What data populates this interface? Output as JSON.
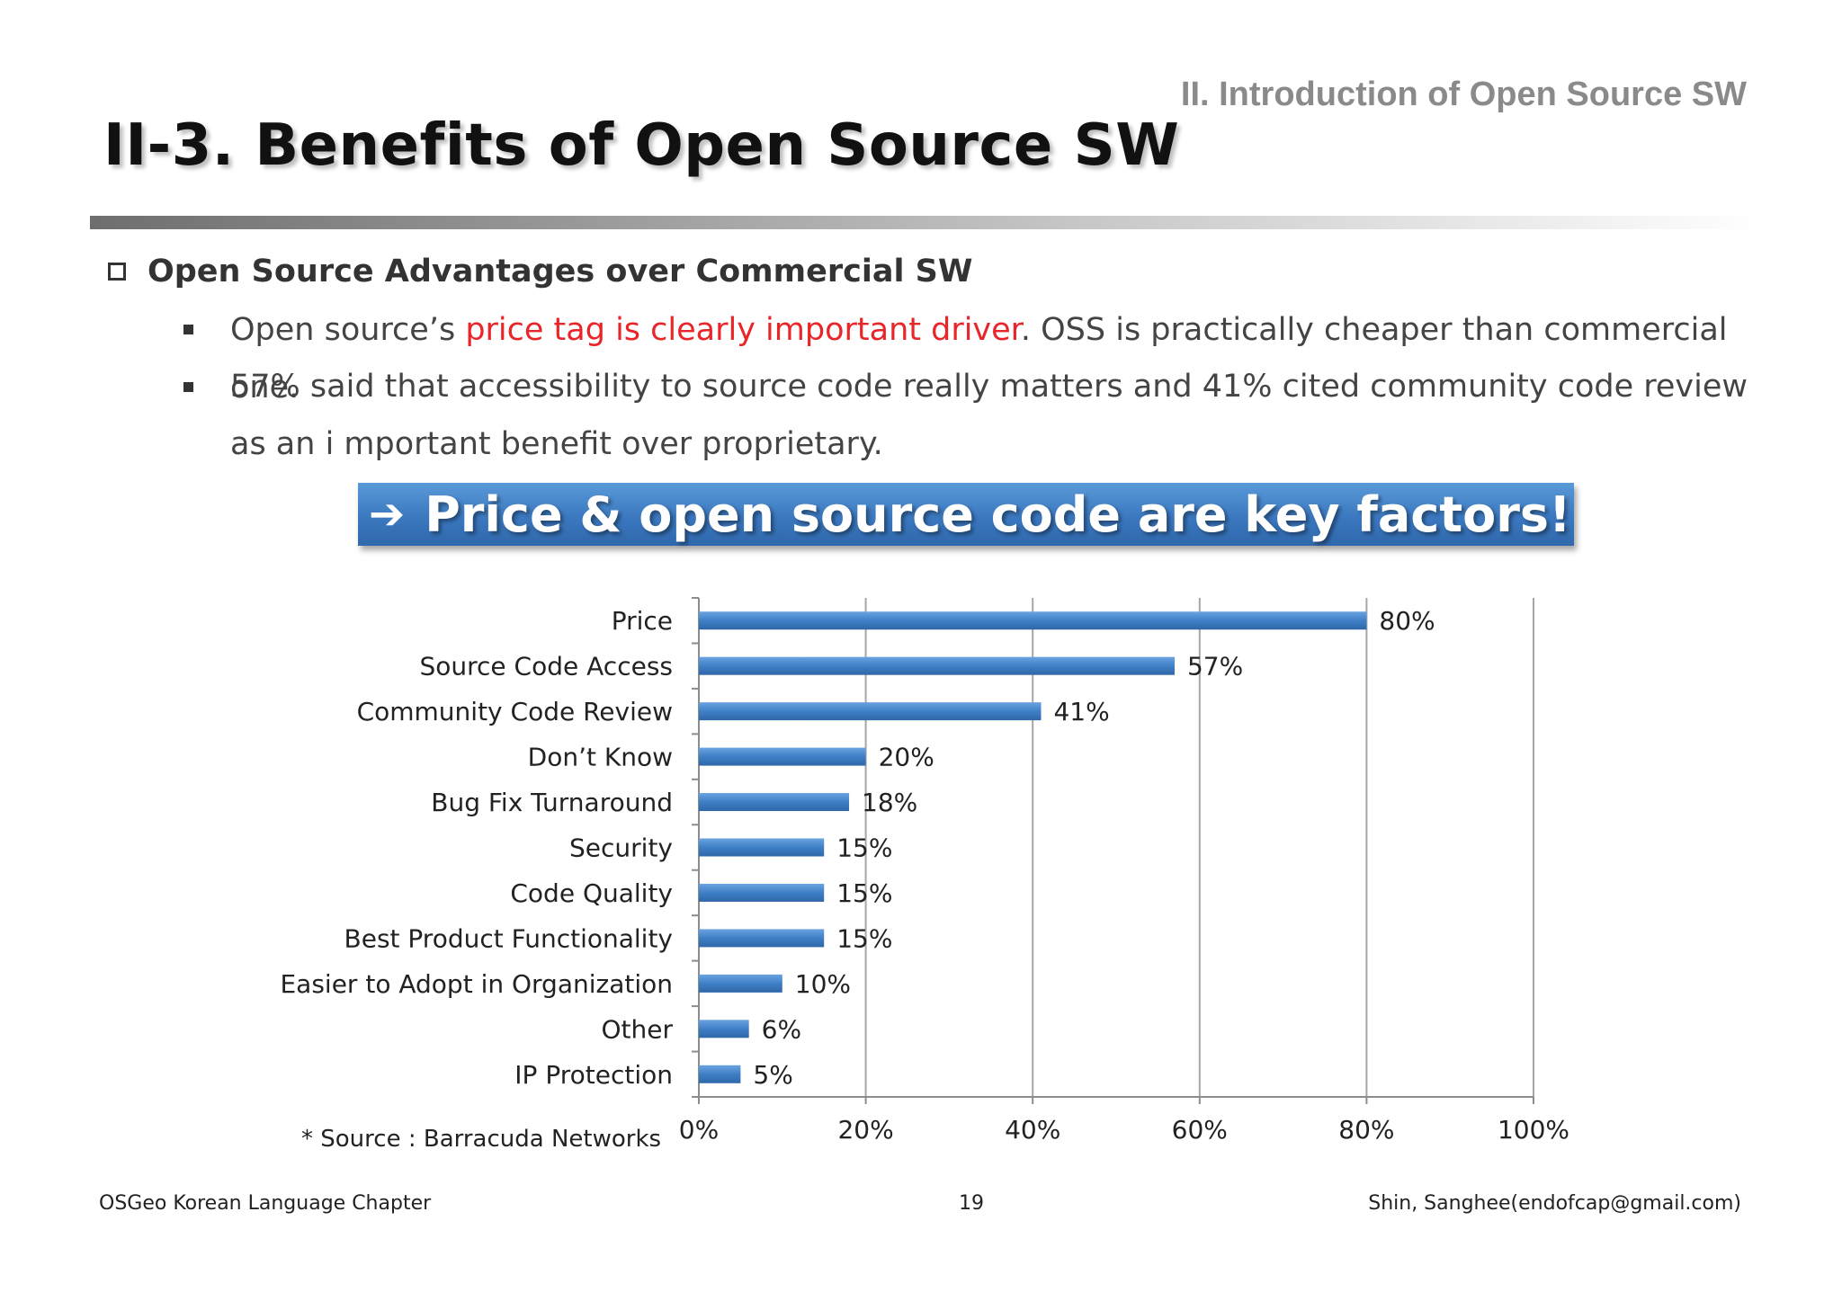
{
  "header": {
    "section_title": "II. Introduction of Open Source SW",
    "page_title": "II-3. Benefits of Open Source SW"
  },
  "content": {
    "subheading": "Open Source Advantages over Commercial SW",
    "bullet1_pre": "Open source’s ",
    "bullet1_highlight": "price tag is clearly important driver",
    "bullet1_post": ". OSS is practically cheaper than commercial one.",
    "bullet2": "57% said that accessibility to source code really matters and 41% cited community code review as an i mportant benefit over proprietary.",
    "banner_arrow": "➔",
    "banner_text": "Price & open source code are key factors!",
    "source_note": "* Source : Barracuda Networks"
  },
  "footer": {
    "left": "OSGeo Korean Language Chapter",
    "page_number": "19",
    "right": "Shin, Sanghee(endofcap@gmail.com)"
  },
  "colors": {
    "bar": "#3f7fc6",
    "bar_dark": "#2f67a8",
    "gridline": "#a6a6a6",
    "highlight_red": "#e8262a"
  },
  "chart_data": {
    "type": "bar",
    "orientation": "horizontal",
    "categories": [
      "Price",
      "Source Code Access",
      "Community Code Review",
      "Don’t Know",
      "Bug Fix Turnaround",
      "Security",
      "Code Quality",
      "Best Product Functionality",
      "Easier to Adopt in Organization",
      "Other",
      "IP Protection"
    ],
    "values": [
      80,
      57,
      41,
      20,
      18,
      15,
      15,
      15,
      10,
      6,
      5
    ],
    "value_labels": [
      "80%",
      "57%",
      "41%",
      "20%",
      "18%",
      "15%",
      "15%",
      "15%",
      "10%",
      "6%",
      "5%"
    ],
    "xlim": [
      0,
      100
    ],
    "xticks": [
      0,
      20,
      40,
      60,
      80,
      100
    ],
    "xtick_labels": [
      "0%",
      "20%",
      "40%",
      "60%",
      "80%",
      "100%"
    ],
    "grid": true,
    "legend": "none"
  }
}
